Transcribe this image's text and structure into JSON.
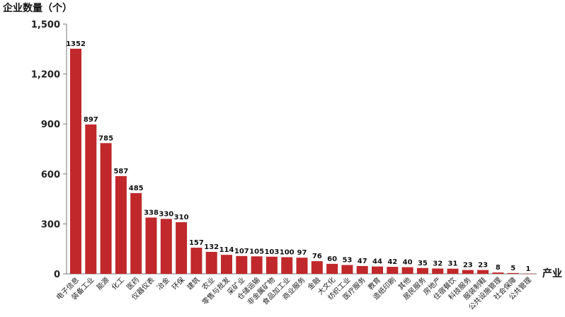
{
  "chart_data": {
    "type": "bar",
    "ylabel": "企业数量（个）",
    "xlabel": "产业",
    "ylim": [
      0,
      1500
    ],
    "yticks": [
      "0",
      "300",
      "600",
      "900",
      "1,200",
      "1,500"
    ],
    "ytick_values": [
      0,
      300,
      600,
      900,
      1200,
      1500
    ],
    "bar_color": "#c0282b",
    "grid": false,
    "categories": [
      "电子信息",
      "装备工业",
      "能源",
      "化工",
      "医药",
      "仪器仪表",
      "冶金",
      "环保",
      "建筑",
      "农业",
      "零售与批发",
      "采矿业",
      "仓储运输",
      "非金属矿物",
      "食品加工业",
      "商业服务",
      "金融",
      "大文化",
      "纺织工业",
      "医疗服务",
      "教育",
      "造纸印刷",
      "其他",
      "居民服务",
      "房地产",
      "住宿餐饮",
      "科技服务",
      "服装制鞋",
      "公共设施管理",
      "社会保障",
      "公共管理"
    ],
    "values": [
      1352,
      897,
      785,
      587,
      485,
      338,
      330,
      310,
      157,
      132,
      114,
      107,
      105,
      103,
      100,
      97,
      76,
      60,
      53,
      47,
      44,
      42,
      40,
      35,
      32,
      31,
      23,
      23,
      8,
      5,
      1
    ],
    "value_labels": [
      "1352",
      "897",
      "785",
      "587",
      "485",
      "338",
      "330",
      "310",
      "157",
      "132",
      "114",
      "107",
      "105",
      "103",
      "100",
      "97",
      "76",
      "60",
      "53",
      "47",
      "44",
      "42",
      "40",
      "35",
      "32",
      "31",
      "23",
      "23",
      "8",
      "5",
      "1"
    ]
  }
}
